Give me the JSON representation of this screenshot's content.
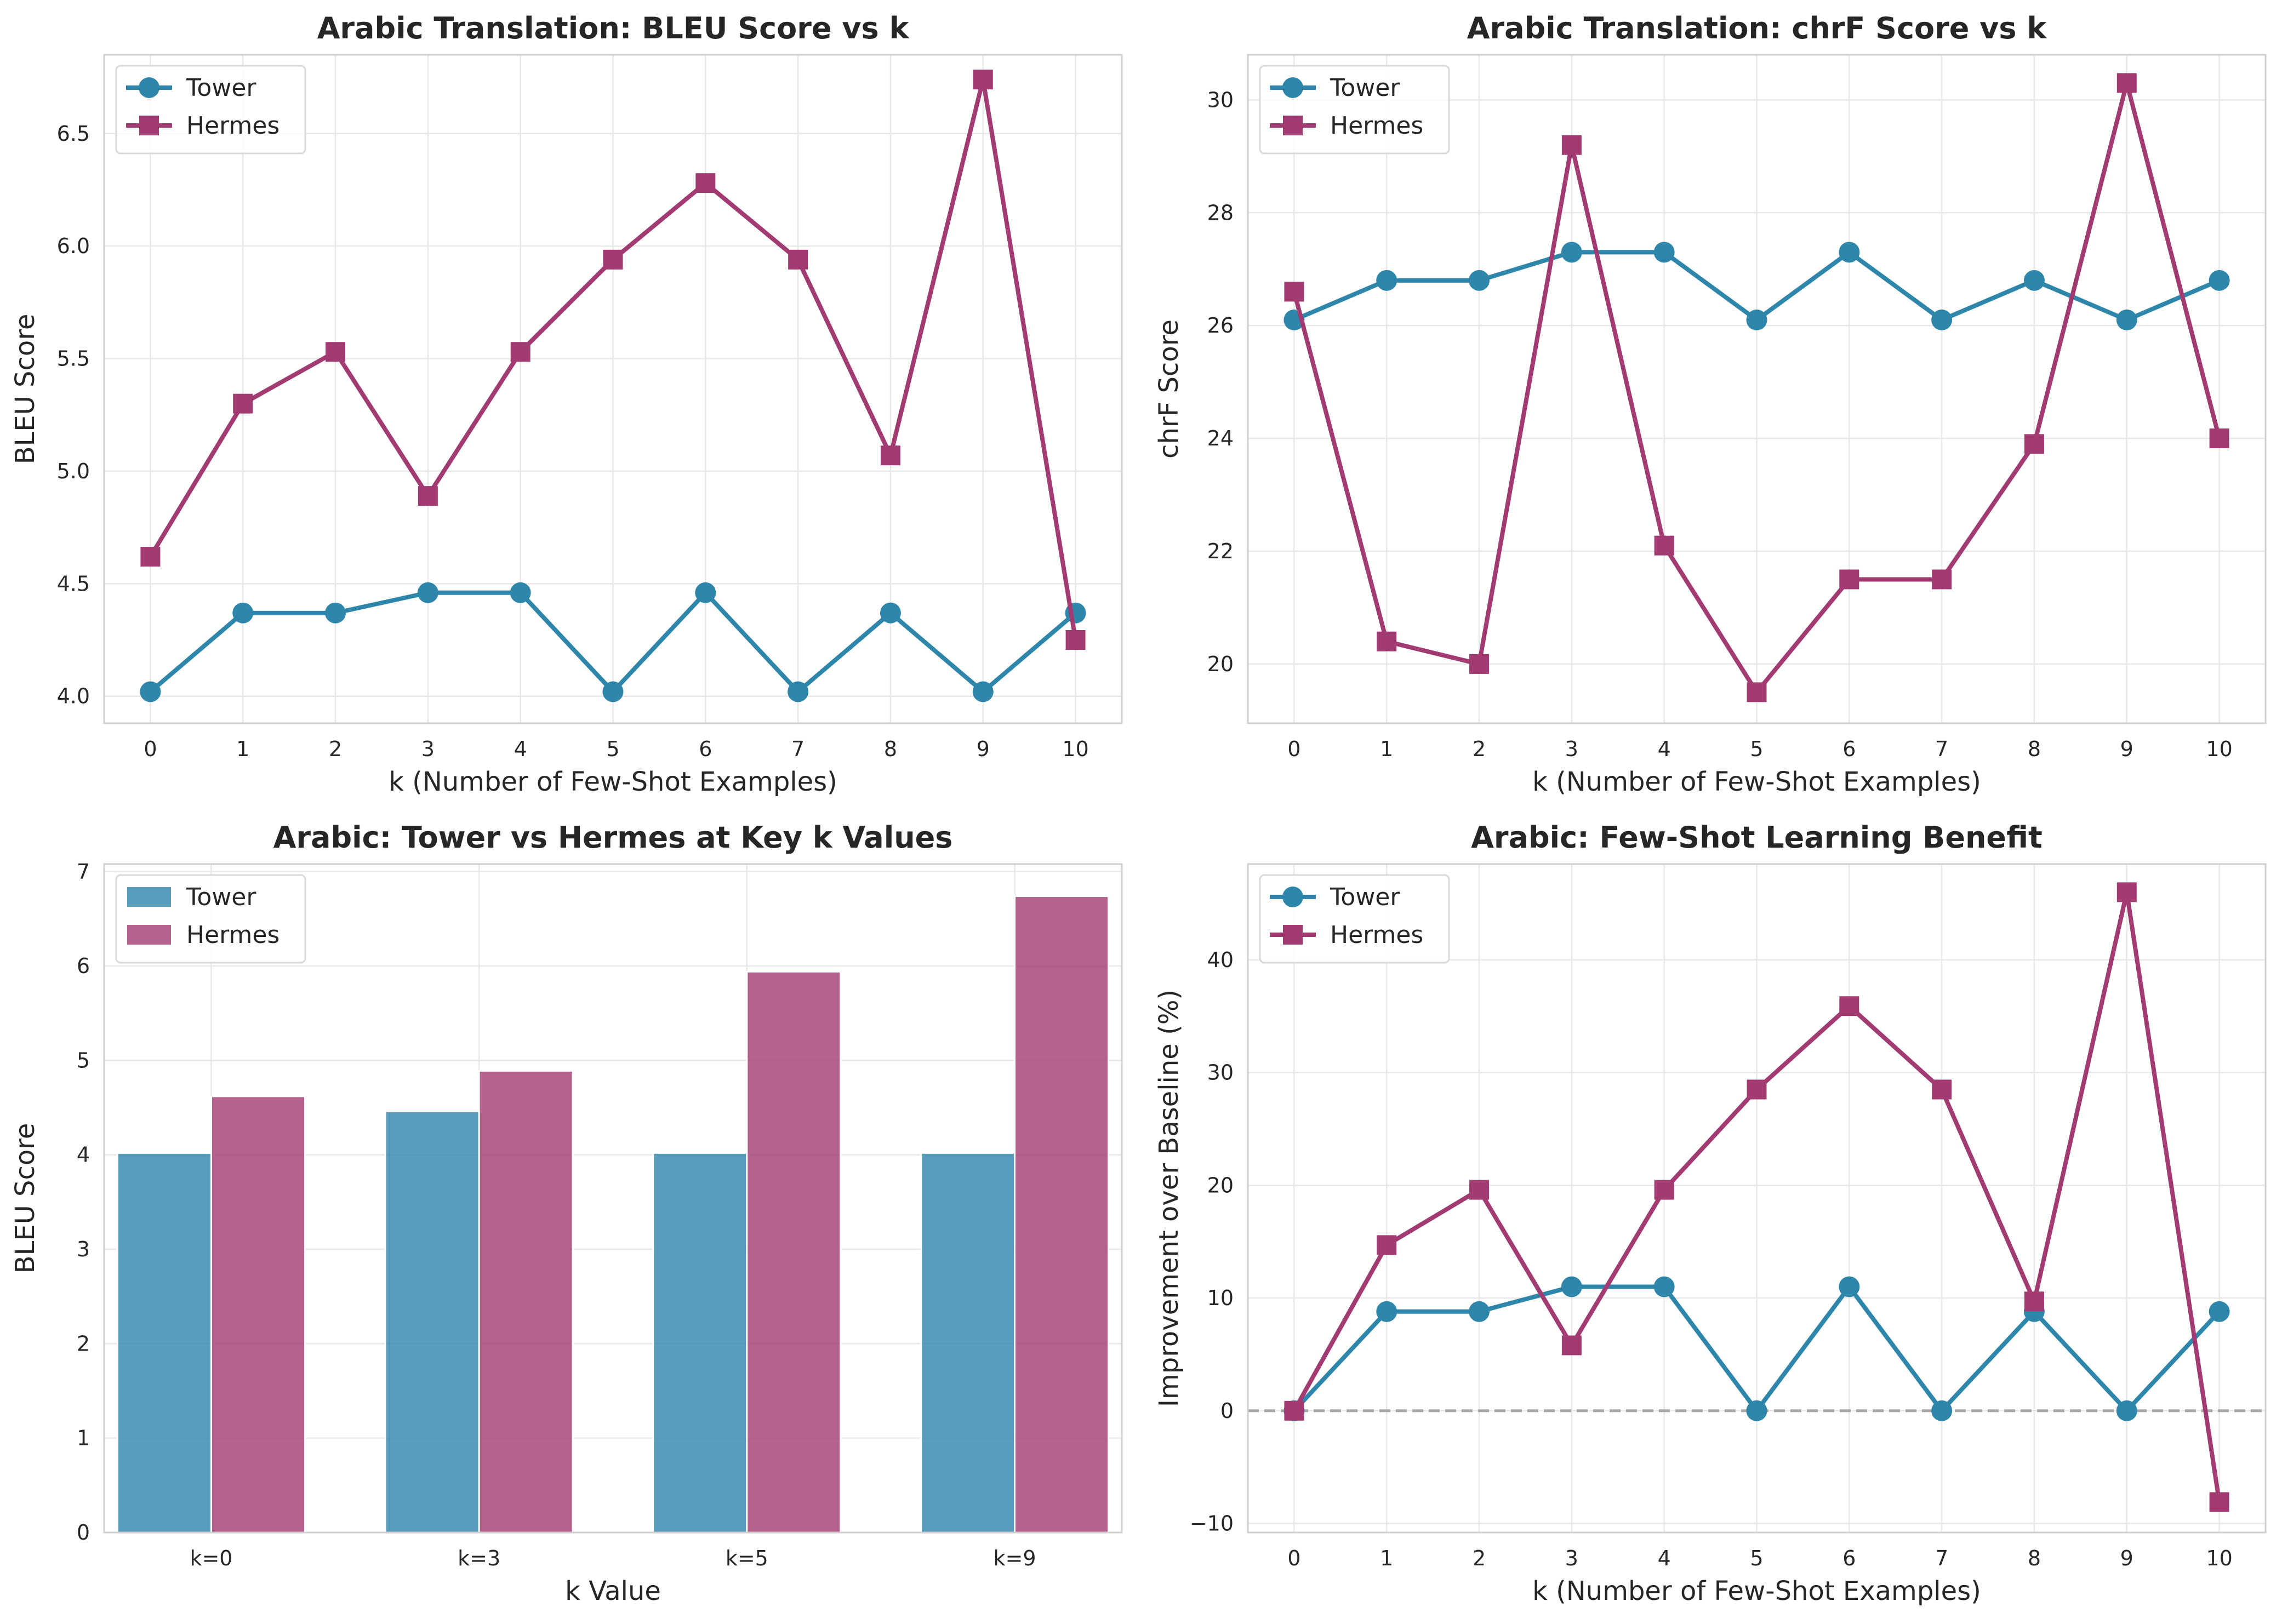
{
  "colors": {
    "tower": "#2e86ab",
    "hermes": "#a23b72",
    "baseline": "#a6a6a6"
  },
  "chart_data": [
    {
      "type": "line",
      "title": "Arabic Translation: BLEU Score vs k",
      "xlabel": "k (Number of Few-Shot Examples)",
      "ylabel": "BLEU Score",
      "x": [
        0,
        1,
        2,
        3,
        4,
        5,
        6,
        7,
        8,
        9,
        10
      ],
      "xticks": [
        "0",
        "1",
        "2",
        "3",
        "4",
        "5",
        "6",
        "7",
        "8",
        "9",
        "10"
      ],
      "xlim": [
        -0.5,
        10.5
      ],
      "ylim": [
        3.88,
        6.85
      ],
      "yticks": [
        "4.0",
        "4.5",
        "5.0",
        "5.5",
        "6.0",
        "6.5"
      ],
      "ytick_values": [
        4.0,
        4.5,
        5.0,
        5.5,
        6.0,
        6.5
      ],
      "grid": true,
      "legend": "top-left",
      "series": [
        {
          "name": "Tower",
          "marker": "circle",
          "values": [
            4.02,
            4.37,
            4.37,
            4.46,
            4.46,
            4.02,
            4.46,
            4.02,
            4.37,
            4.02,
            4.37
          ]
        },
        {
          "name": "Hermes",
          "marker": "square",
          "values": [
            4.62,
            5.3,
            5.53,
            4.89,
            5.53,
            5.94,
            6.28,
            5.94,
            5.07,
            6.74,
            4.25
          ]
        }
      ]
    },
    {
      "type": "line",
      "title": "Arabic Translation: chrF Score vs k",
      "xlabel": "k (Number of Few-Shot Examples)",
      "ylabel": "chrF Score",
      "x": [
        0,
        1,
        2,
        3,
        4,
        5,
        6,
        7,
        8,
        9,
        10
      ],
      "xticks": [
        "0",
        "1",
        "2",
        "3",
        "4",
        "5",
        "6",
        "7",
        "8",
        "9",
        "10"
      ],
      "xlim": [
        -0.5,
        10.5
      ],
      "ylim": [
        18.95,
        30.8
      ],
      "yticks": [
        "20",
        "22",
        "24",
        "26",
        "28",
        "30"
      ],
      "ytick_values": [
        20,
        22,
        24,
        26,
        28,
        30
      ],
      "grid": true,
      "legend": "top-left",
      "series": [
        {
          "name": "Tower",
          "marker": "circle",
          "values": [
            26.1,
            26.8,
            26.8,
            27.3,
            27.3,
            26.1,
            27.3,
            26.1,
            26.8,
            26.1,
            26.8
          ]
        },
        {
          "name": "Hermes",
          "marker": "square",
          "values": [
            26.6,
            20.4,
            20.0,
            29.2,
            22.1,
            19.5,
            21.5,
            21.5,
            23.9,
            30.3,
            24.0
          ]
        }
      ]
    },
    {
      "type": "bar",
      "title": "Arabic: Tower vs Hermes at Key k Values",
      "xlabel": "k Value",
      "ylabel": "BLEU Score",
      "categories": [
        "k=0",
        "k=3",
        "k=5",
        "k=9"
      ],
      "ylim": [
        0,
        7.08
      ],
      "yticks": [
        "0",
        "1",
        "2",
        "3",
        "4",
        "5",
        "6",
        "7"
      ],
      "ytick_values": [
        0,
        1,
        2,
        3,
        4,
        5,
        6,
        7
      ],
      "grid": true,
      "legend": "top-left",
      "series": [
        {
          "name": "Tower",
          "values": [
            4.02,
            4.46,
            4.02,
            4.02
          ]
        },
        {
          "name": "Hermes",
          "values": [
            4.62,
            4.89,
            5.94,
            6.74
          ]
        }
      ]
    },
    {
      "type": "line",
      "title": "Arabic: Few-Shot Learning Benefit",
      "xlabel": "k (Number of Few-Shot Examples)",
      "ylabel": "Improvement over Baseline (%)",
      "x": [
        0,
        1,
        2,
        3,
        4,
        5,
        6,
        7,
        8,
        9,
        10
      ],
      "xticks": [
        "0",
        "1",
        "2",
        "3",
        "4",
        "5",
        "6",
        "7",
        "8",
        "9",
        "10"
      ],
      "xlim": [
        -0.5,
        10.5
      ],
      "ylim": [
        -10.8,
        48.5
      ],
      "yticks": [
        "−10",
        "0",
        "10",
        "20",
        "30",
        "40"
      ],
      "ytick_values": [
        -10,
        0,
        10,
        20,
        30,
        40
      ],
      "grid": true,
      "legend": "top-left",
      "baseline": 0,
      "series": [
        {
          "name": "Tower",
          "marker": "circle",
          "values": [
            0,
            8.8,
            8.8,
            11.0,
            11.0,
            0,
            11.0,
            0,
            8.8,
            0,
            8.8
          ]
        },
        {
          "name": "Hermes",
          "marker": "square",
          "values": [
            0,
            14.7,
            19.6,
            5.8,
            19.6,
            28.5,
            35.9,
            28.5,
            9.7,
            46.0,
            -8.1
          ]
        }
      ]
    }
  ]
}
